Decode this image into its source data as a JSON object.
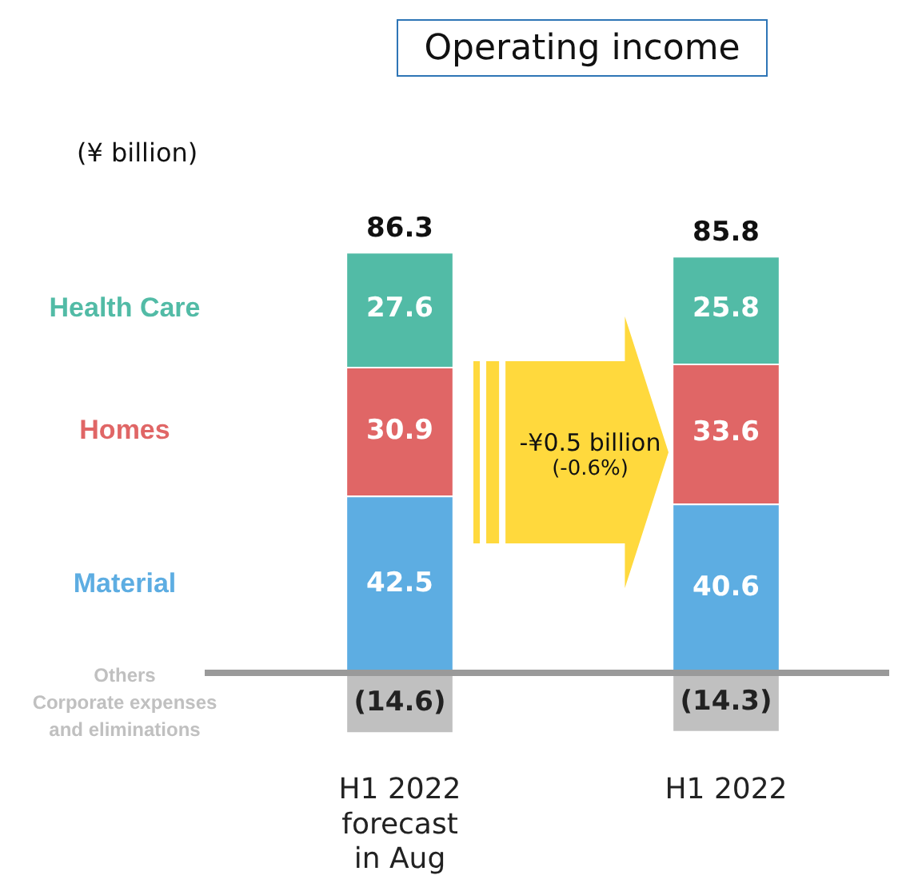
{
  "chart_data": {
    "type": "bar",
    "title": "Operating income",
    "stacked": true,
    "legend": false,
    "categories": [
      "H1 2022 forecast in Aug",
      "H1 2022"
    ],
    "series": [
      {
        "name": "Material",
        "color": "#5dade2",
        "values": [
          42.5,
          40.6
        ],
        "value_labels": [
          "42.5",
          "40.6"
        ]
      },
      {
        "name": "Homes",
        "color": "#e06666",
        "values": [
          30.9,
          33.6
        ],
        "value_labels": [
          "30.9",
          "33.6"
        ]
      },
      {
        "name": "Health Care",
        "color": "#52bba6",
        "values": [
          27.6,
          25.8
        ],
        "value_labels": [
          "27.6",
          "25.8"
        ]
      },
      {
        "name": "Others\nCorporate expenses\nand eliminations",
        "color": "#c0c0c0",
        "values": [
          -14.6,
          -14.3
        ],
        "value_labels": [
          "(14.6)",
          "(14.3)"
        ]
      }
    ],
    "totals": [
      "86.3",
      "85.8"
    ],
    "annotations": [
      "(¥ billion)",
      "-¥0.5 billion",
      "(-0.6%)"
    ]
  }
}
